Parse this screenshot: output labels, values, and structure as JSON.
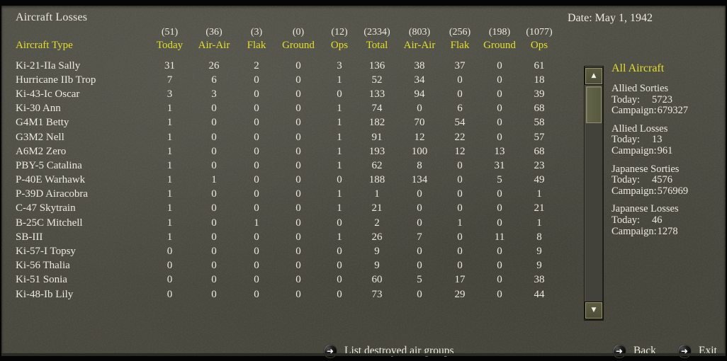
{
  "title": "Aircraft Losses",
  "date_label": "Date: May 1, 1942",
  "table": {
    "type_header": "Aircraft Type",
    "columns": [
      {
        "count": "(51)",
        "label": "Today"
      },
      {
        "count": "(36)",
        "label": "Air-Air"
      },
      {
        "count": "(3)",
        "label": "Flak"
      },
      {
        "count": "(0)",
        "label": "Ground"
      },
      {
        "count": "(12)",
        "label": "Ops"
      },
      {
        "count": "(2334)",
        "label": "Total"
      },
      {
        "count": "(803)",
        "label": "Air-Air"
      },
      {
        "count": "(256)",
        "label": "Flak"
      },
      {
        "count": "(198)",
        "label": "Ground"
      },
      {
        "count": "(1077)",
        "label": "Ops"
      }
    ],
    "rows": [
      {
        "name": "Ki-21-IIa Sally",
        "values": [
          "31",
          "26",
          "2",
          "0",
          "3",
          "136",
          "38",
          "37",
          "0",
          "61"
        ]
      },
      {
        "name": "Hurricane IIb Trop",
        "values": [
          "7",
          "6",
          "0",
          "0",
          "1",
          "52",
          "34",
          "0",
          "0",
          "18"
        ]
      },
      {
        "name": "Ki-43-Ic Oscar",
        "values": [
          "3",
          "3",
          "0",
          "0",
          "0",
          "133",
          "94",
          "0",
          "0",
          "39"
        ]
      },
      {
        "name": "Ki-30 Ann",
        "values": [
          "1",
          "0",
          "0",
          "0",
          "1",
          "74",
          "0",
          "6",
          "0",
          "68"
        ]
      },
      {
        "name": "G4M1 Betty",
        "values": [
          "1",
          "0",
          "0",
          "0",
          "1",
          "182",
          "70",
          "54",
          "0",
          "58"
        ]
      },
      {
        "name": "G3M2 Nell",
        "values": [
          "1",
          "0",
          "0",
          "0",
          "1",
          "91",
          "12",
          "22",
          "0",
          "57"
        ]
      },
      {
        "name": "A6M2 Zero",
        "values": [
          "1",
          "0",
          "0",
          "0",
          "1",
          "193",
          "100",
          "12",
          "13",
          "68"
        ]
      },
      {
        "name": "PBY-5 Catalina",
        "values": [
          "1",
          "0",
          "0",
          "0",
          "1",
          "62",
          "8",
          "0",
          "31",
          "23"
        ]
      },
      {
        "name": "P-40E Warhawk",
        "values": [
          "1",
          "1",
          "0",
          "0",
          "0",
          "188",
          "134",
          "0",
          "5",
          "49"
        ]
      },
      {
        "name": "P-39D Airacobra",
        "values": [
          "1",
          "0",
          "0",
          "0",
          "1",
          "1",
          "0",
          "0",
          "0",
          "1"
        ]
      },
      {
        "name": "C-47 Skytrain",
        "values": [
          "1",
          "0",
          "0",
          "0",
          "1",
          "21",
          "0",
          "0",
          "0",
          "21"
        ]
      },
      {
        "name": "B-25C Mitchell",
        "values": [
          "1",
          "0",
          "1",
          "0",
          "0",
          "2",
          "0",
          "1",
          "0",
          "1"
        ]
      },
      {
        "name": "SB-III",
        "values": [
          "1",
          "0",
          "0",
          "0",
          "1",
          "26",
          "7",
          "0",
          "11",
          "8"
        ]
      },
      {
        "name": "Ki-57-I Topsy",
        "values": [
          "0",
          "0",
          "0",
          "0",
          "0",
          "9",
          "0",
          "0",
          "0",
          "9"
        ]
      },
      {
        "name": "Ki-56 Thalia",
        "values": [
          "0",
          "0",
          "0",
          "0",
          "0",
          "9",
          "0",
          "0",
          "0",
          "9"
        ]
      },
      {
        "name": "Ki-51 Sonia",
        "values": [
          "0",
          "0",
          "0",
          "0",
          "0",
          "60",
          "5",
          "17",
          "0",
          "38"
        ]
      },
      {
        "name": "Ki-48-Ib Lily",
        "values": [
          "0",
          "0",
          "0",
          "0",
          "0",
          "73",
          "0",
          "29",
          "0",
          "44"
        ]
      }
    ]
  },
  "sidebar": {
    "heading": "All Aircraft",
    "stats": [
      {
        "title": "Allied Sorties",
        "today_label": "Today:",
        "today_value": "5723",
        "campaign_label": "Campaign:",
        "campaign_value": "679327"
      },
      {
        "title": "Allied Losses",
        "today_label": "Today:",
        "today_value": "13",
        "campaign_label": "Campaign:",
        "campaign_value": "961"
      },
      {
        "title": "Japanese Sorties",
        "today_label": "Today:",
        "today_value": "4576",
        "campaign_label": "Campaign:",
        "campaign_value": "576969"
      },
      {
        "title": "Japanese Losses",
        "today_label": "Today:",
        "today_value": "46",
        "campaign_label": "Campaign:",
        "campaign_value": "1278"
      }
    ]
  },
  "scrollbar": {
    "up_glyph": "▲",
    "down_glyph": "▼"
  },
  "footer": {
    "arrow_glyph": "➜",
    "list_groups_label": "List destroyed air groups",
    "back_label": "Back",
    "exit_label": "Exit"
  },
  "colors": {
    "background": "#4b4a40",
    "text_white": "#eceade",
    "accent_yellow": "#e3df2e",
    "scrollbar_olive": "#5c5e42",
    "frame_black": "#050505"
  }
}
